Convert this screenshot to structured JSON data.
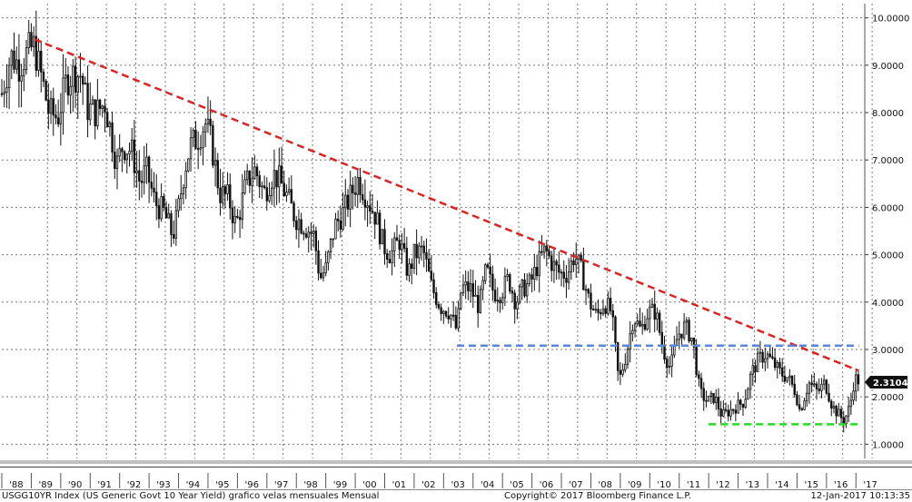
{
  "chart_data": {
    "type": "candlestick",
    "x_tick_labels": [
      "'88",
      "'89",
      "'90",
      "'91",
      "'92",
      "'93",
      "'94",
      "'95",
      "'96",
      "'97",
      "'98",
      "'99",
      "'00",
      "'01",
      "'02",
      "'03",
      "'04",
      "'05",
      "'06",
      "'07",
      "'08",
      "'09",
      "'10",
      "'11",
      "'12",
      "'13",
      "'14",
      "'15",
      "'16",
      "'17"
    ],
    "y_tick_labels": [
      "10.0000",
      "9.0000",
      "8.0000",
      "7.0000",
      "6.0000",
      "5.0000",
      "4.0000",
      "3.0000",
      "2.0000",
      "1.0000"
    ],
    "y_ticks": [
      10,
      9,
      8,
      7,
      6,
      5,
      4,
      3,
      2,
      1
    ],
    "ylim": [
      0.7,
      10.3
    ],
    "xlim": [
      1988.0,
      2017.3
    ],
    "grid": true,
    "last_value": 2.3104,
    "last_value_label": "2.3104",
    "series": [
      {
        "name": "",
        "type": "candles_monthly",
        "anchors": [
          [
            1988.0,
            8.4
          ],
          [
            1988.3,
            9.2
          ],
          [
            1988.6,
            9.0
          ],
          [
            1988.9,
            9.3
          ],
          [
            1989.1,
            9.4
          ],
          [
            1989.4,
            8.6
          ],
          [
            1989.6,
            8.0
          ],
          [
            1989.9,
            7.9
          ],
          [
            1990.2,
            8.7
          ],
          [
            1990.4,
            8.8
          ],
          [
            1990.7,
            8.8
          ],
          [
            1990.9,
            8.1
          ],
          [
            1991.2,
            8.0
          ],
          [
            1991.5,
            8.2
          ],
          [
            1991.7,
            7.6
          ],
          [
            1991.9,
            6.9
          ],
          [
            1992.1,
            7.3
          ],
          [
            1992.4,
            7.2
          ],
          [
            1992.7,
            6.5
          ],
          [
            1992.9,
            6.8
          ],
          [
            1993.2,
            6.1
          ],
          [
            1993.5,
            5.9
          ],
          [
            1993.8,
            5.4
          ],
          [
            1993.95,
            5.8
          ],
          [
            1994.2,
            6.8
          ],
          [
            1994.4,
            7.3
          ],
          [
            1994.7,
            7.5
          ],
          [
            1994.9,
            7.8
          ],
          [
            1995.1,
            7.4
          ],
          [
            1995.4,
            6.3
          ],
          [
            1995.7,
            6.2
          ],
          [
            1995.95,
            5.6
          ],
          [
            1996.3,
            6.5
          ],
          [
            1996.6,
            6.8
          ],
          [
            1996.9,
            6.3
          ],
          [
            1997.2,
            6.7
          ],
          [
            1997.4,
            6.6
          ],
          [
            1997.7,
            6.2
          ],
          [
            1997.95,
            5.8
          ],
          [
            1998.3,
            5.6
          ],
          [
            1998.6,
            5.4
          ],
          [
            1998.8,
            4.5
          ],
          [
            1999.0,
            4.7
          ],
          [
            1999.3,
            5.6
          ],
          [
            1999.6,
            5.9
          ],
          [
            1999.95,
            6.4
          ],
          [
            2000.1,
            6.6
          ],
          [
            2000.4,
            6.2
          ],
          [
            2000.7,
            5.8
          ],
          [
            2000.95,
            5.2
          ],
          [
            2001.2,
            5.0
          ],
          [
            2001.5,
            5.3
          ],
          [
            2001.8,
            4.6
          ],
          [
            2002.0,
            5.0
          ],
          [
            2002.3,
            5.1
          ],
          [
            2002.6,
            4.3
          ],
          [
            2002.9,
            3.9
          ],
          [
            2003.2,
            3.8
          ],
          [
            2003.45,
            3.4
          ],
          [
            2003.6,
            4.3
          ],
          [
            2003.9,
            4.3
          ],
          [
            2004.2,
            3.9
          ],
          [
            2004.45,
            4.7
          ],
          [
            2004.7,
            4.2
          ],
          [
            2004.95,
            4.2
          ],
          [
            2005.2,
            4.5
          ],
          [
            2005.45,
            4.0
          ],
          [
            2005.7,
            4.3
          ],
          [
            2005.95,
            4.4
          ],
          [
            2006.2,
            4.8
          ],
          [
            2006.45,
            5.1
          ],
          [
            2006.7,
            4.8
          ],
          [
            2006.95,
            4.6
          ],
          [
            2007.2,
            4.6
          ],
          [
            2007.45,
            5.0
          ],
          [
            2007.7,
            4.6
          ],
          [
            2007.95,
            4.0
          ],
          [
            2008.2,
            3.7
          ],
          [
            2008.45,
            4.0
          ],
          [
            2008.7,
            3.8
          ],
          [
            2008.95,
            2.3
          ],
          [
            2009.2,
            2.9
          ],
          [
            2009.45,
            3.7
          ],
          [
            2009.7,
            3.4
          ],
          [
            2009.95,
            3.8
          ],
          [
            2010.2,
            3.8
          ],
          [
            2010.45,
            3.0
          ],
          [
            2010.7,
            2.6
          ],
          [
            2010.95,
            3.3
          ],
          [
            2011.2,
            3.5
          ],
          [
            2011.45,
            3.2
          ],
          [
            2011.7,
            2.1
          ],
          [
            2011.95,
            1.9
          ],
          [
            2012.2,
            2.0
          ],
          [
            2012.45,
            1.6
          ],
          [
            2012.7,
            1.7
          ],
          [
            2012.95,
            1.8
          ],
          [
            2013.2,
            1.9
          ],
          [
            2013.45,
            2.5
          ],
          [
            2013.7,
            2.8
          ],
          [
            2013.95,
            2.9
          ],
          [
            2014.2,
            2.7
          ],
          [
            2014.45,
            2.5
          ],
          [
            2014.7,
            2.4
          ],
          [
            2014.95,
            2.1
          ],
          [
            2015.1,
            1.7
          ],
          [
            2015.4,
            2.3
          ],
          [
            2015.7,
            2.1
          ],
          [
            2015.95,
            2.3
          ],
          [
            2016.2,
            1.8
          ],
          [
            2016.45,
            1.6
          ],
          [
            2016.6,
            1.5
          ],
          [
            2016.8,
            1.8
          ],
          [
            2016.95,
            2.4
          ],
          [
            2017.05,
            2.35
          ]
        ]
      },
      {
        "name": "",
        "type": "trendline",
        "color": "#dd2222",
        "style": "dashed",
        "points": [
          [
            1989.1,
            9.55
          ],
          [
            2017.1,
            2.55
          ]
        ]
      },
      {
        "name": "",
        "type": "trendline",
        "color": "#5588dd",
        "style": "dashed",
        "points": [
          [
            2003.45,
            3.08
          ],
          [
            2017.1,
            3.08
          ]
        ]
      },
      {
        "name": "",
        "type": "trendline",
        "color": "#22dd22",
        "style": "dashed",
        "points": [
          [
            2012.0,
            1.42
          ],
          [
            2017.1,
            1.42
          ]
        ]
      }
    ]
  },
  "footer": {
    "left": "USGG10YR Index (US Generic Govt 10 Year Yield) grafico velas mensuales  Mensual",
    "center": "Copyright© 2017 Bloomberg Finance L.P.",
    "right": "12-Jan-2017  10:13:35"
  },
  "colors": {
    "candle": "#111111",
    "grid": "#777777",
    "panel_border": "#999999",
    "band": "#c0c0c0",
    "value_box": "#111111",
    "value_text": "#ffffff"
  }
}
